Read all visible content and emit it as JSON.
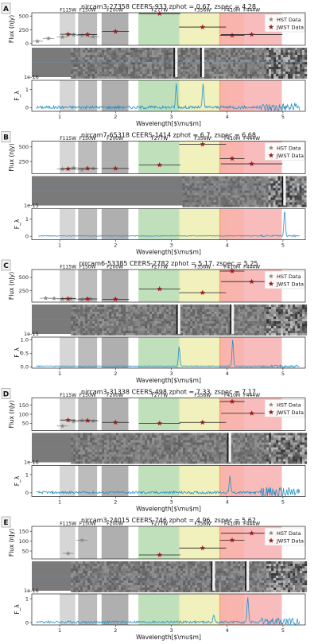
{
  "filters": [
    {
      "name": "F115W",
      "range": [
        1.0,
        1.28
      ],
      "color": "#d2d2d2"
    },
    {
      "name": "F150W",
      "range": [
        1.33,
        1.67
      ],
      "color": "#b5b5b5"
    },
    {
      "name": "F200W",
      "range": [
        1.75,
        2.23
      ],
      "color": "#a6a6a6"
    },
    {
      "name": "F277W",
      "range": [
        2.41,
        3.16
      ],
      "color": "#b9ddb4"
    },
    {
      "name": "F356W",
      "range": [
        3.14,
        3.98
      ],
      "color": "#f0f0b6"
    },
    {
      "name": "F410M",
      "range": [
        3.86,
        4.3
      ],
      "color": "#f6a05c"
    },
    {
      "name": "F444W",
      "range": [
        3.88,
        4.98
      ],
      "color": "#f7b5b5"
    }
  ],
  "legend": {
    "hst": "HST Data",
    "jwst": "JWST Data"
  },
  "xlabel": "Wavelength[$\\mu$m]",
  "ylabel_top": "Flux (nJy)",
  "ylabel_bottom": "F_λ",
  "x_ticks": [
    "1",
    "2",
    "3",
    "4",
    "5"
  ],
  "colors": {
    "hst": "#8a8a8a",
    "jwst": "#9b1b1b",
    "spectrum": "#2a8fc2"
  },
  "chart_data": [
    {
      "type": "line",
      "panel": "A",
      "title": "nircam3-27358   CEERS-933 zphot = 0.67, zspec = 4.28",
      "y_ticks": [
        "0",
        "250",
        "500"
      ],
      "ylim": [
        -30,
        560
      ],
      "scale_label": "1e-16",
      "spec_ticks": [
        "1",
        "0"
      ],
      "spec_ylim": [
        -0.2,
        1.5
      ],
      "hst_points": [
        [
          0.6,
          45
        ],
        [
          0.8,
          95
        ],
        [
          1.05,
          120
        ],
        [
          1.25,
          160
        ],
        [
          1.4,
          150
        ],
        [
          1.6,
          125
        ]
      ],
      "jwst_points": [
        [
          1.15,
          170
        ],
        [
          1.5,
          165
        ],
        [
          2.0,
          220
        ],
        [
          2.79,
          545
        ],
        [
          3.56,
          300
        ],
        [
          4.09,
          150
        ],
        [
          4.44,
          165
        ]
      ],
      "spectrum": {
        "noise": 0.08,
        "noise_red": 0.25,
        "lines": [
          [
            3.09,
            1.35
          ],
          [
            3.57,
            1.25
          ]
        ]
      }
    },
    {
      "type": "line",
      "panel": "B",
      "title": "nircam7-65318   CEERS-1414 zphot = 6.7, zspec = 6.68",
      "y_ticks": [
        "250",
        "500"
      ],
      "ylim": [
        40,
        600
      ],
      "scale_label": "1e-15",
      "spec_ticks": [
        "1",
        "0"
      ],
      "spec_ylim": [
        -0.2,
        1.6
      ],
      "hst_points": [
        [
          1.05,
          120
        ],
        [
          1.25,
          140
        ],
        [
          1.4,
          110
        ],
        [
          1.6,
          130
        ]
      ],
      "jwst_points": [
        [
          1.15,
          125
        ],
        [
          1.5,
          130
        ],
        [
          2.0,
          130
        ],
        [
          2.79,
          190
        ],
        [
          3.56,
          545
        ],
        [
          4.09,
          300
        ],
        [
          4.44,
          210
        ]
      ],
      "spectrum": {
        "noise": 0.02,
        "noise_red": 0.05,
        "lines": [
          [
            5.03,
            1.5
          ]
        ]
      }
    },
    {
      "type": "line",
      "panel": "C",
      "title": "nircam6-53385   CEERS-2782 zphot = 5.17, zspec = 5.25",
      "y_ticks": [
        "250",
        "500"
      ],
      "ylim": [
        30,
        650
      ],
      "scale_label": "1e-15",
      "spec_ticks": [
        "1.0",
        "0.5",
        "0.0"
      ],
      "spec_ylim": [
        -0.05,
        1.1
      ],
      "hst_points": [
        [
          0.75,
          105
        ],
        [
          0.9,
          100
        ],
        [
          1.05,
          90
        ],
        [
          1.2,
          95
        ],
        [
          1.4,
          80
        ],
        [
          1.55,
          90
        ]
      ],
      "jwst_points": [
        [
          1.15,
          95
        ],
        [
          1.5,
          90
        ],
        [
          2.0,
          85
        ],
        [
          2.79,
          280
        ],
        [
          3.56,
          210
        ],
        [
          4.09,
          620
        ],
        [
          4.44,
          420
        ]
      ],
      "spectrum": {
        "noise": 0.02,
        "noise_red": 0.05,
        "lines": [
          [
            3.14,
            0.75
          ],
          [
            4.1,
            1.0
          ]
        ]
      }
    },
    {
      "type": "line",
      "panel": "D",
      "title": "nircam3-31338   CEERS-498 zphot = 7.33, zspec = 7.17",
      "y_ticks": [
        "50",
        "100",
        "150"
      ],
      "ylim": [
        10,
        190
      ],
      "scale_label": "1e-16",
      "spec_ticks": [
        "1",
        "0"
      ],
      "spec_ylim": [
        -0.2,
        1.5
      ],
      "hst_points": [
        [
          1.05,
          35
        ],
        [
          1.25,
          60
        ],
        [
          1.4,
          65
        ],
        [
          1.6,
          62
        ]
      ],
      "jwst_points": [
        [
          1.15,
          68
        ],
        [
          1.5,
          65
        ],
        [
          2.0,
          55
        ],
        [
          2.79,
          50
        ],
        [
          3.56,
          55
        ],
        [
          4.09,
          170
        ],
        [
          4.44,
          105
        ]
      ],
      "spectrum": {
        "noise": 0.07,
        "noise_red": 0.3,
        "lines": [
          [
            4.05,
            0.9
          ]
        ]
      }
    },
    {
      "type": "line",
      "panel": "E",
      "title": "nircam3-24015   CEERS-746 zphot = 4.96, zspec = 5.62",
      "y_ticks": [
        "50",
        "100",
        "150"
      ],
      "ylim": [
        10,
        175
      ],
      "scale_label": "1e-16",
      "spec_ticks": [
        "1",
        "0"
      ],
      "spec_ylim": [
        -0.1,
        1.2
      ],
      "hst_points": [
        [
          1.15,
          38
        ],
        [
          1.4,
          105
        ]
      ],
      "jwst_points": [
        [
          2.79,
          30
        ],
        [
          3.56,
          65
        ],
        [
          4.09,
          105
        ],
        [
          4.44,
          140
        ]
      ],
      "spectrum": {
        "noise": 0.05,
        "noise_red": 0.18,
        "lines": [
          [
            3.76,
            0.3
          ],
          [
            4.37,
            1.05
          ]
        ]
      }
    }
  ]
}
